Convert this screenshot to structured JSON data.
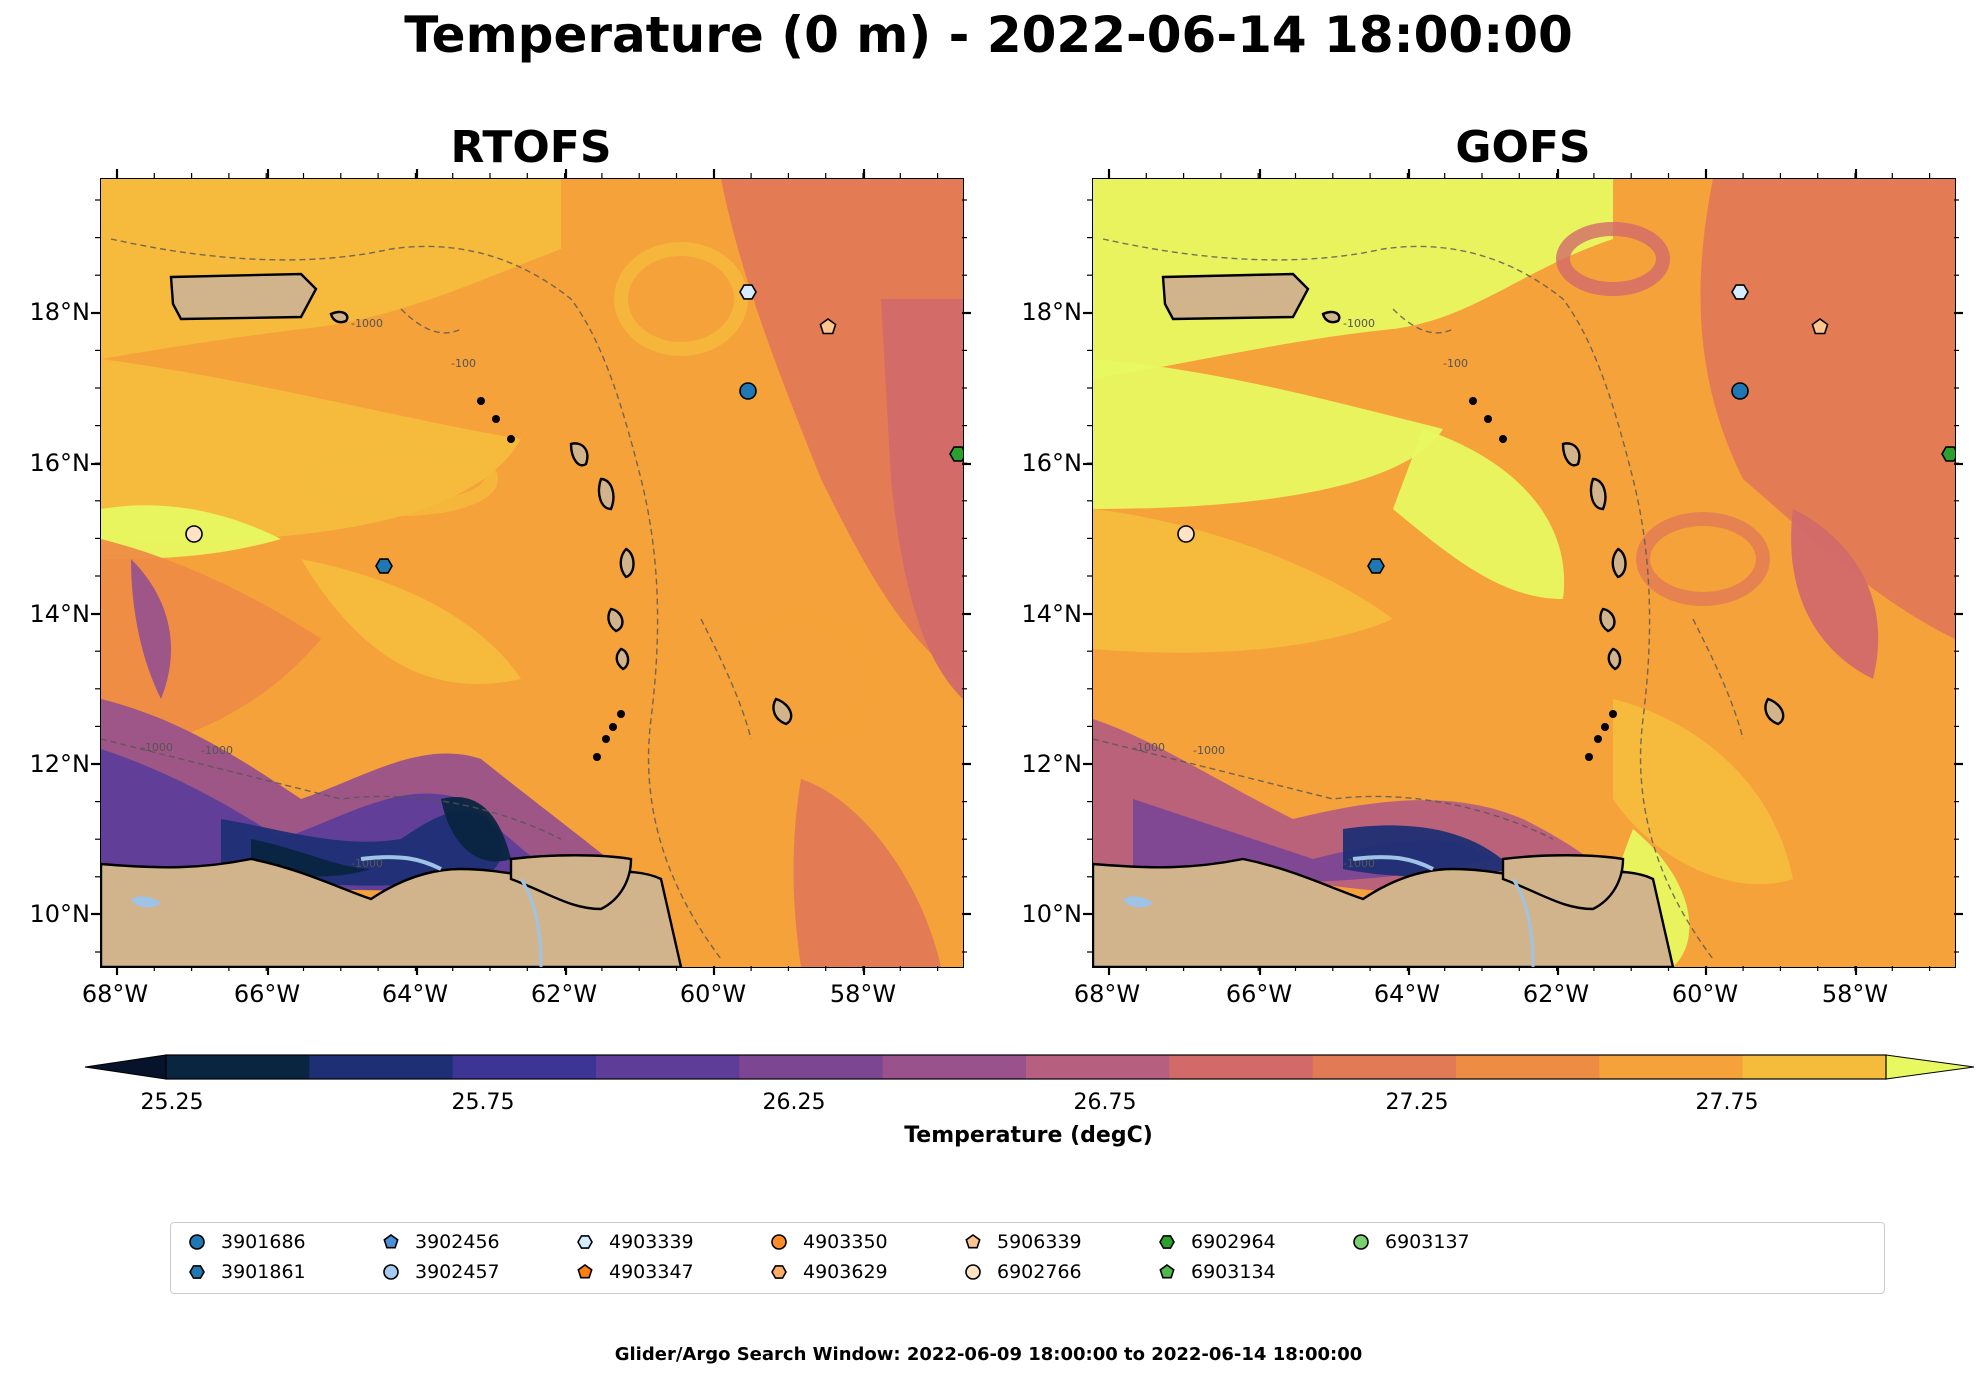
{
  "title": "Temperature (0 m) - 2022-06-14 18:00:00",
  "panels": [
    {
      "name": "RTOFS",
      "style": "rtofs"
    },
    {
      "name": "GOFS",
      "style": "gofs"
    }
  ],
  "lat_labels": [
    "18°N",
    "16°N",
    "14°N",
    "12°N",
    "10°N"
  ],
  "lon_labels": [
    "68°W",
    "66°W",
    "64°W",
    "62°W",
    "60°W",
    "58°W"
  ],
  "contour_labels": [
    "-1000",
    "-100"
  ],
  "colorbar": {
    "label": "Temperature (degC)",
    "tick_labels": [
      "25.25",
      "25.75",
      "26.25",
      "26.75",
      "27.25",
      "27.75"
    ],
    "colors": [
      "#0a2540",
      "#1f2f75",
      "#3d3596",
      "#5e3d98",
      "#7c4693",
      "#99528b",
      "#b75f7e",
      "#d26a6a",
      "#e27a55",
      "#ee8c44",
      "#f5a23a",
      "#f5bc3c"
    ],
    "under_color": "#07132b",
    "over_color": "#e8f860"
  },
  "colors": {
    "land": "#d2b48c",
    "lake": "#9ec3e6"
  },
  "floats": [
    {
      "id": "3901686",
      "marker": "circle",
      "color": "#1f77b4"
    },
    {
      "id": "3901861",
      "marker": "hexagon",
      "color": "#1f77b4"
    },
    {
      "id": "3902456",
      "marker": "pentagon",
      "color": "#4a90d9"
    },
    {
      "id": "3902457",
      "marker": "circle",
      "color": "#a6cbf0"
    },
    {
      "id": "4903339",
      "marker": "hexagon",
      "color": "#d6ecff"
    },
    {
      "id": "4903347",
      "marker": "pentagon",
      "color": "#ff7f0e"
    },
    {
      "id": "4903350",
      "marker": "circle",
      "color": "#ff8c29"
    },
    {
      "id": "4903629",
      "marker": "hexagon",
      "color": "#ffad66"
    },
    {
      "id": "5906339",
      "marker": "pentagon",
      "color": "#ffc58f"
    },
    {
      "id": "6902766",
      "marker": "circle",
      "color": "#ffe3c4"
    },
    {
      "id": "6902964",
      "marker": "hexagon",
      "color": "#2ca02c"
    },
    {
      "id": "6903134",
      "marker": "pentagon",
      "color": "#4fb84f"
    },
    {
      "id": "6903137",
      "marker": "circle",
      "color": "#7bd16f"
    }
  ],
  "footer": "Glider/Argo Search Window: 2022-06-09 18:00:00 to 2022-06-14 18:00:00"
}
